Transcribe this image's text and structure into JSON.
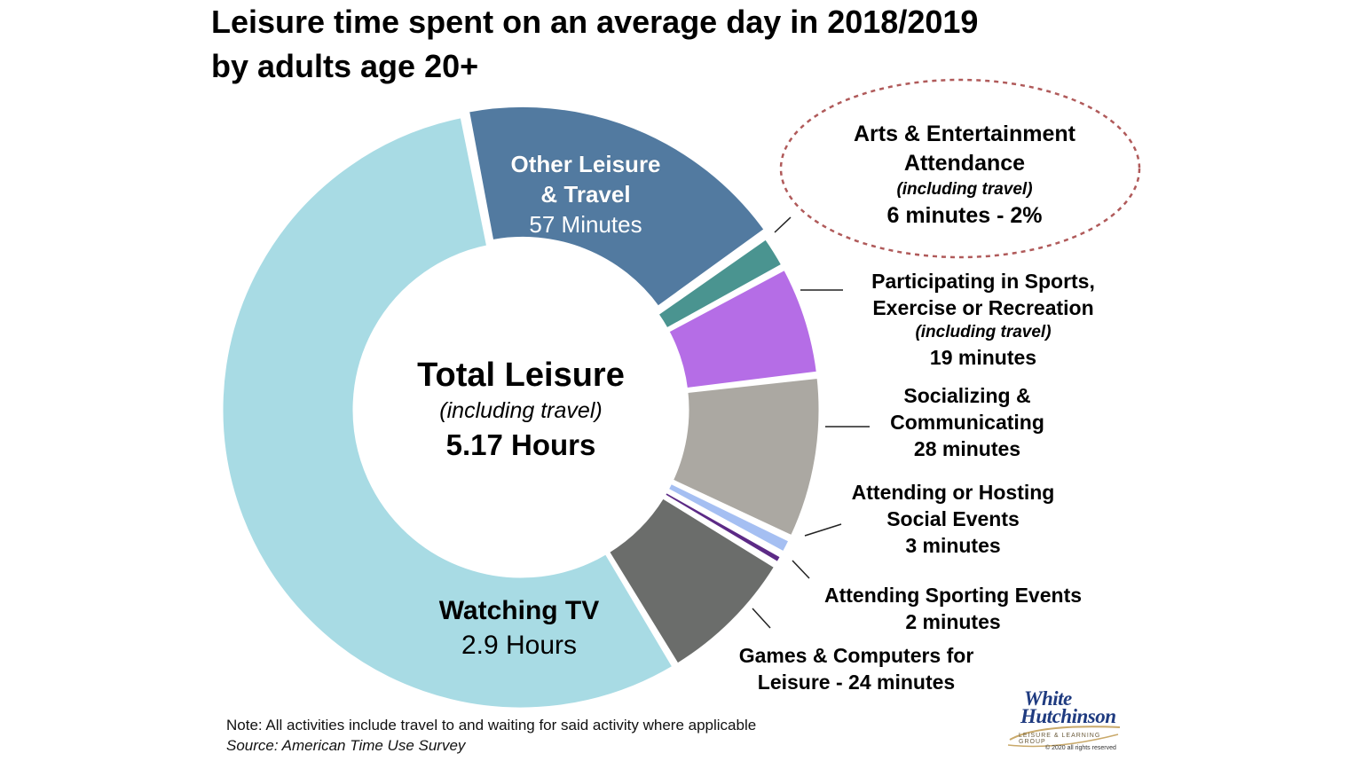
{
  "title": {
    "line1": "Leisure time spent on an average day in 2018/2019",
    "line2": "by adults age 20+"
  },
  "center": {
    "title": "Total Leisure",
    "subtitle": "(including travel)",
    "value": "5.17 Hours"
  },
  "labels": {
    "other": {
      "line1": "Other Leisure",
      "line2": "& Travel",
      "value": "57 Minutes"
    },
    "arts": {
      "line1": "Arts & Entertainment",
      "line2": "Attendance",
      "sub": "(including travel)",
      "value": "6 minutes - 2%"
    },
    "sports": {
      "line1": "Participating in Sports,",
      "line2": "Exercise or Recreation",
      "sub": "(including travel)",
      "value": "19 minutes"
    },
    "social": {
      "line1": "Socializing &",
      "line2": "Communicating",
      "value": "28 minutes"
    },
    "hosting": {
      "line1": "Attending or Hosting",
      "line2": "Social Events",
      "value": "3 minutes"
    },
    "sporting": {
      "line1": "Attending Sporting Events",
      "value": "2 minutes"
    },
    "games": {
      "line1": "Games & Computers for",
      "line2": "Leisure - 24 minutes"
    },
    "tv": {
      "title": "Watching TV",
      "value": "2.9 Hours"
    }
  },
  "note": {
    "text": "Note: All activities include travel to and waiting for said activity where applicable",
    "source": "Source: American Time Use Survey"
  },
  "logo": {
    "line1": "White",
    "line2": "Hutchinson",
    "tagline": "LEISURE & LEARNING GROUP",
    "copyright": "© 2020 all rights reserved"
  },
  "chart_data": {
    "type": "pie",
    "unit": "minutes",
    "slices": [
      {
        "label": "Other Leisure & Travel",
        "value": 57,
        "color": "#527aa0"
      },
      {
        "label": "Arts & Entertainment Attendance (including travel)",
        "value": 6,
        "color": "#4a9490"
      },
      {
        "label": "Participating in Sports, Exercise or Recreation (including travel)",
        "value": 19,
        "color": "#b56de6"
      },
      {
        "label": "Socializing & Communicating",
        "value": 28,
        "color": "#aba8a2"
      },
      {
        "label": "Attending or Hosting Social Events",
        "value": 3,
        "color": "#a5bff2"
      },
      {
        "label": "Attending Sporting Events",
        "value": 2,
        "color": "#5c2a86"
      },
      {
        "label": "Games & Computers for Leisure",
        "value": 24,
        "color": "#6b6d6b"
      },
      {
        "label": "Watching TV",
        "value": 174,
        "color": "#a8dbe4"
      }
    ],
    "total_label": "5.17 Hours",
    "highlight": "Arts & Entertainment Attendance (including travel)"
  }
}
